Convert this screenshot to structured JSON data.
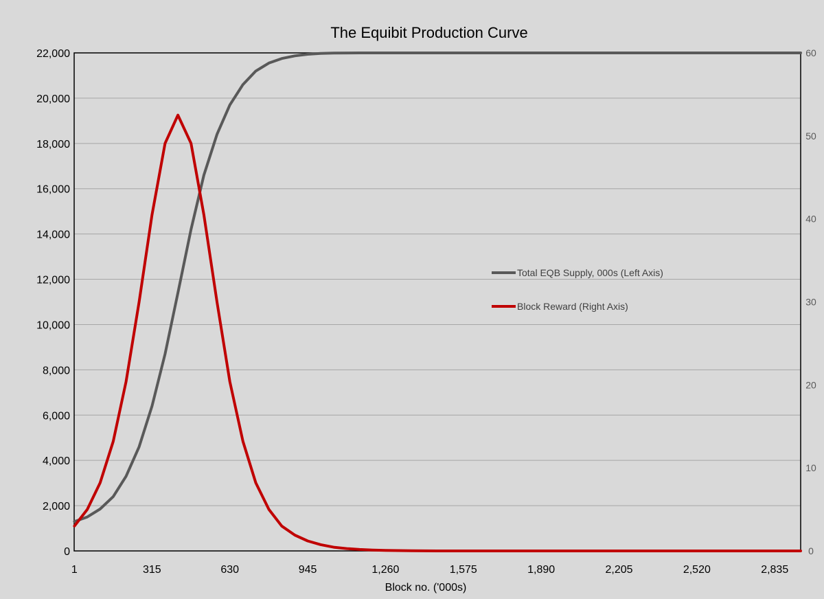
{
  "chart_data": {
    "type": "line",
    "title": "The Equibit Production Curve",
    "xlabel": "Block no. ('000s)",
    "x_tick_labels": [
      "1",
      "315",
      "630",
      "945",
      "1,260",
      "1,575",
      "1,890",
      "2,205",
      "2,520",
      "2,835"
    ],
    "x_tick_values": [
      1,
      315,
      630,
      945,
      1260,
      1575,
      1890,
      2205,
      2520,
      2835
    ],
    "xlim": [
      0,
      2940
    ],
    "y_left": {
      "ylim": [
        0,
        22000
      ],
      "tick_labels": [
        "0",
        "2,000",
        "4,000",
        "6,000",
        "8,000",
        "10,000",
        "12,000",
        "14,000",
        "16,000",
        "18,000",
        "20,000",
        "22,000"
      ],
      "tick_values": [
        0,
        2000,
        4000,
        6000,
        8000,
        10000,
        12000,
        14000,
        16000,
        18000,
        20000,
        22000
      ]
    },
    "y_right": {
      "ylim": [
        0,
        60
      ],
      "tick_labels": [
        "0",
        "10",
        "20",
        "30",
        "40",
        "50",
        "60"
      ],
      "tick_values": [
        0,
        10,
        20,
        30,
        40,
        50,
        60
      ]
    },
    "grid": "horizontal",
    "legend_position": "center-right",
    "series": [
      {
        "name": "Total EQB Supply, 000s (Left Axis)",
        "axis": "left",
        "color": "#595959",
        "points": [
          [
            1,
            1300
          ],
          [
            53,
            1500
          ],
          [
            105,
            1850
          ],
          [
            158,
            2400
          ],
          [
            210,
            3300
          ],
          [
            263,
            4600
          ],
          [
            315,
            6400
          ],
          [
            368,
            8700
          ],
          [
            420,
            11400
          ],
          [
            473,
            14200
          ],
          [
            525,
            16600
          ],
          [
            578,
            18400
          ],
          [
            630,
            19700
          ],
          [
            683,
            20600
          ],
          [
            735,
            21200
          ],
          [
            788,
            21550
          ],
          [
            840,
            21750
          ],
          [
            893,
            21870
          ],
          [
            945,
            21940
          ],
          [
            998,
            21975
          ],
          [
            1050,
            21990
          ],
          [
            1155,
            22000
          ],
          [
            1260,
            22000
          ],
          [
            1575,
            22000
          ],
          [
            1890,
            22000
          ],
          [
            2205,
            22000
          ],
          [
            2520,
            22000
          ],
          [
            2835,
            22000
          ],
          [
            2940,
            22000
          ]
        ]
      },
      {
        "name": "Block Reward (Right Axis)",
        "axis": "right",
        "color": "#c00000",
        "points": [
          [
            1,
            3
          ],
          [
            53,
            5
          ],
          [
            105,
            8.2
          ],
          [
            158,
            13.2
          ],
          [
            210,
            20.4
          ],
          [
            263,
            30
          ],
          [
            315,
            40.5
          ],
          [
            368,
            49.1
          ],
          [
            420,
            52.5
          ],
          [
            473,
            49.1
          ],
          [
            525,
            40.5
          ],
          [
            578,
            30
          ],
          [
            630,
            20.4
          ],
          [
            683,
            13.2
          ],
          [
            735,
            8.2
          ],
          [
            788,
            5
          ],
          [
            840,
            3
          ],
          [
            893,
            1.9
          ],
          [
            945,
            1.2
          ],
          [
            998,
            0.75
          ],
          [
            1050,
            0.45
          ],
          [
            1103,
            0.28
          ],
          [
            1155,
            0.17
          ],
          [
            1208,
            0.1
          ],
          [
            1260,
            0.06
          ],
          [
            1365,
            0.02
          ],
          [
            1470,
            0
          ],
          [
            1575,
            0
          ],
          [
            1890,
            0
          ],
          [
            2205,
            0
          ],
          [
            2520,
            0
          ],
          [
            2835,
            0
          ],
          [
            2940,
            0
          ]
        ]
      }
    ]
  }
}
